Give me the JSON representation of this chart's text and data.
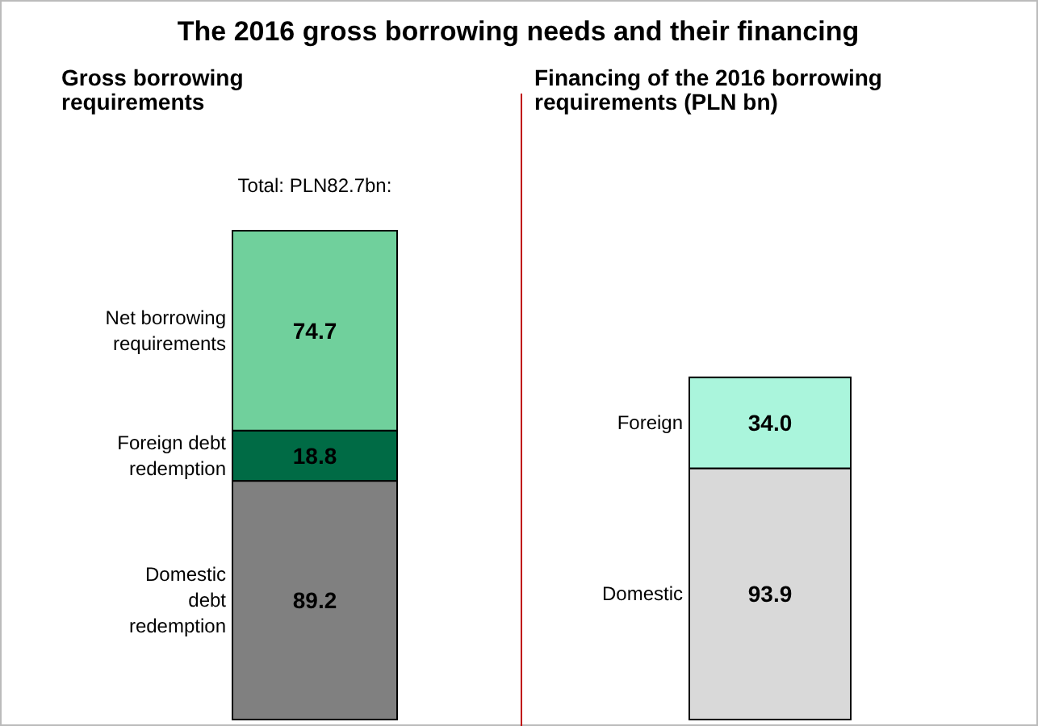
{
  "chart_data": [
    {
      "type": "bar",
      "stacked": true,
      "title": "The 2016 gross borrowing needs and their financing",
      "subtitle": "Gross borrowing requirements",
      "annotations": [
        "Total: PLN82.7bn:"
      ],
      "categories": [
        null
      ],
      "series": [
        {
          "name": "Domestic debt redemption",
          "color": "#808080",
          "values": [
            89.2
          ],
          "value_labels": [
            "89.2"
          ]
        },
        {
          "name": "Foreign debt redemption",
          "color": "#006b45",
          "values": [
            18.8
          ],
          "value_labels": [
            "18.8"
          ]
        },
        {
          "name": "Net borrowing requirements",
          "color": "#70d09c",
          "values": [
            74.7
          ],
          "value_labels": [
            "74.7"
          ]
        }
      ]
    },
    {
      "type": "bar",
      "stacked": true,
      "subtitle": "Financing of the 2016 borrowing requirements (PLN bn)",
      "categories": [
        null
      ],
      "series": [
        {
          "name": "Domestic",
          "color": "#d9d9d9",
          "values": [
            93.9
          ],
          "value_labels": [
            "93.9"
          ]
        },
        {
          "name": "Foreign",
          "color": "#aaf5dc",
          "values": [
            34.0
          ],
          "value_labels": [
            "34.0"
          ]
        }
      ]
    }
  ]
}
